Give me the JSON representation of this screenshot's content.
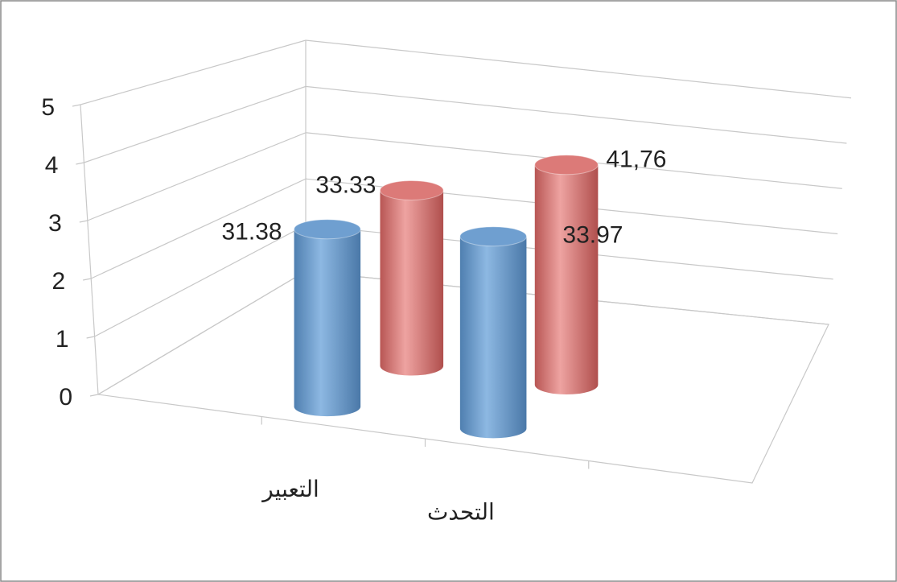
{
  "chart_data": {
    "type": "bar3d",
    "categories": [
      "التعبير",
      "التحدث"
    ],
    "series": [
      {
        "color": "#6f9fd0",
        "values": [
          3.138,
          3.397
        ],
        "value_labels": [
          "31.38",
          "33.97"
        ]
      },
      {
        "color": "#dc7a78",
        "values": [
          3.333,
          4.176
        ],
        "value_labels": [
          "33.33",
          "41,76"
        ]
      }
    ],
    "ylim": [
      0,
      5
    ],
    "yticks": [
      0,
      1,
      2,
      3,
      4,
      5
    ],
    "grid": true
  }
}
